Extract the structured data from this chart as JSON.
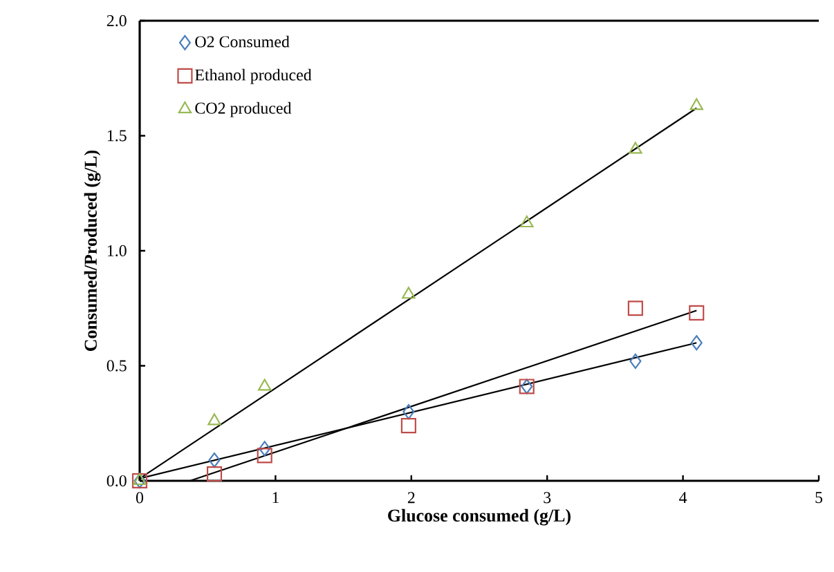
{
  "chart_data": {
    "type": "scatter",
    "xlabel": "Glucose consumed (g/L)",
    "ylabel": "Consumed/Produced (g/L)",
    "xlim": [
      0,
      5
    ],
    "ylim": [
      0,
      2.0
    ],
    "xticks": [
      0,
      1,
      2,
      3,
      4,
      5
    ],
    "yticks": [
      {
        "value": 0,
        "label": "0.0"
      },
      {
        "value": 0.5,
        "label": "0.5"
      },
      {
        "value": 1.0,
        "label": "1.0"
      },
      {
        "value": 1.5,
        "label": "1.5"
      },
      {
        "value": 2.0,
        "label": "2.0"
      }
    ],
    "grid": false,
    "legend": "top left",
    "x": [
      0,
      0.55,
      0.92,
      1.98,
      2.85,
      3.65,
      4.1
    ],
    "series": [
      {
        "name": "O2 Consumed",
        "color": "#4a7ebb",
        "marker": "diamond",
        "values": [
          0,
          0.09,
          0.14,
          0.3,
          0.41,
          0.52,
          0.6
        ]
      },
      {
        "name": "Ethanol produced",
        "color": "#be4b48",
        "marker": "square",
        "values": [
          0,
          0.03,
          0.11,
          0.24,
          0.41,
          0.75,
          0.73
        ]
      },
      {
        "name": "CO2 produced",
        "color": "#98b954",
        "marker": "triangle",
        "values": [
          0,
          0.26,
          0.41,
          0.81,
          1.12,
          1.44,
          1.63
        ]
      },
      {
        "type": "line",
        "color": "#000000",
        "marker": "none",
        "line_style": "solid",
        "x": [
          0,
          4.1
        ],
        "values": [
          0.01,
          0.6
        ]
      },
      {
        "type": "line",
        "color": "#000000",
        "marker": "none",
        "line_style": "solid",
        "x": [
          0.37,
          4.1
        ],
        "values": [
          0,
          0.74
        ]
      },
      {
        "type": "line",
        "color": "#000000",
        "marker": "none",
        "line_style": "solid",
        "x": [
          0,
          4.1
        ],
        "values": [
          0.01,
          1.62
        ]
      }
    ]
  }
}
